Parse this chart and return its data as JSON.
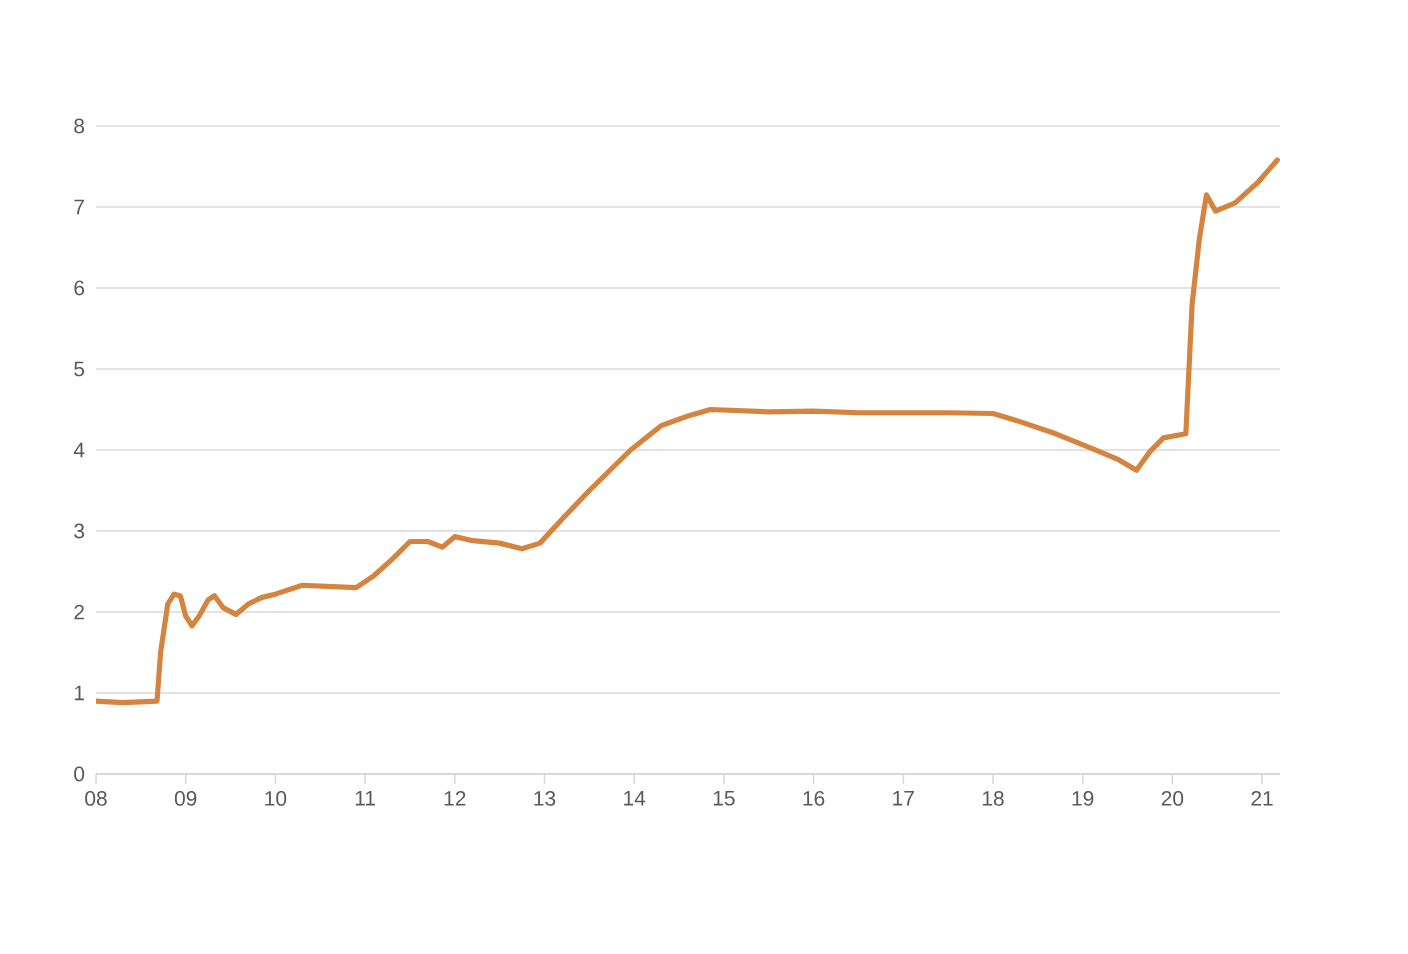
{
  "chart_data": {
    "type": "line",
    "xlim": [
      2008,
      2021.2
    ],
    "ylim": [
      0,
      8
    ],
    "yticks": [
      0,
      1,
      2,
      3,
      4,
      5,
      6,
      7,
      8
    ],
    "xticks": [
      {
        "value": 2008,
        "label": "08"
      },
      {
        "value": 2009,
        "label": "09"
      },
      {
        "value": 2010,
        "label": "10"
      },
      {
        "value": 2011,
        "label": "11"
      },
      {
        "value": 2012,
        "label": "12"
      },
      {
        "value": 2013,
        "label": "13"
      },
      {
        "value": 2014,
        "label": "14"
      },
      {
        "value": 2015,
        "label": "15"
      },
      {
        "value": 2016,
        "label": "16"
      },
      {
        "value": 2017,
        "label": "17"
      },
      {
        "value": 2018,
        "label": "18"
      },
      {
        "value": 2019,
        "label": "19"
      },
      {
        "value": 2020,
        "label": "20"
      },
      {
        "value": 2021,
        "label": "21"
      }
    ],
    "grid": "y",
    "marker": "none",
    "line_style": "solid",
    "series": [
      {
        "color": "#d4843f",
        "x": [
          2008.0,
          2008.3,
          2008.68,
          2008.72,
          2008.8,
          2008.87,
          2008.94,
          2009.0,
          2009.07,
          2009.15,
          2009.25,
          2009.32,
          2009.42,
          2009.56,
          2009.7,
          2009.85,
          2010.0,
          2010.3,
          2010.7,
          2010.9,
          2011.1,
          2011.3,
          2011.5,
          2011.7,
          2011.86,
          2012.0,
          2012.2,
          2012.5,
          2012.75,
          2012.95,
          2013.2,
          2013.5,
          2013.96,
          2014.3,
          2014.6,
          2014.85,
          2015.5,
          2016.0,
          2016.5,
          2017.0,
          2017.5,
          2018.0,
          2018.3,
          2018.7,
          2019.1,
          2019.4,
          2019.6,
          2019.75,
          2019.9,
          2020.15,
          2020.22,
          2020.3,
          2020.38,
          2020.48,
          2020.7,
          2020.95,
          2021.17
        ],
        "values": [
          0.9,
          0.88,
          0.9,
          1.5,
          2.1,
          2.22,
          2.2,
          1.95,
          1.83,
          1.95,
          2.15,
          2.2,
          2.05,
          1.97,
          2.1,
          2.18,
          2.22,
          2.33,
          2.31,
          2.3,
          2.45,
          2.65,
          2.87,
          2.87,
          2.8,
          2.93,
          2.88,
          2.85,
          2.78,
          2.85,
          3.15,
          3.5,
          4.0,
          4.3,
          4.42,
          4.5,
          4.47,
          4.48,
          4.46,
          4.46,
          4.46,
          4.45,
          4.35,
          4.2,
          4.02,
          3.88,
          3.75,
          3.98,
          4.15,
          4.2,
          5.8,
          6.6,
          7.15,
          6.95,
          7.05,
          7.3,
          7.58
        ]
      }
    ]
  }
}
